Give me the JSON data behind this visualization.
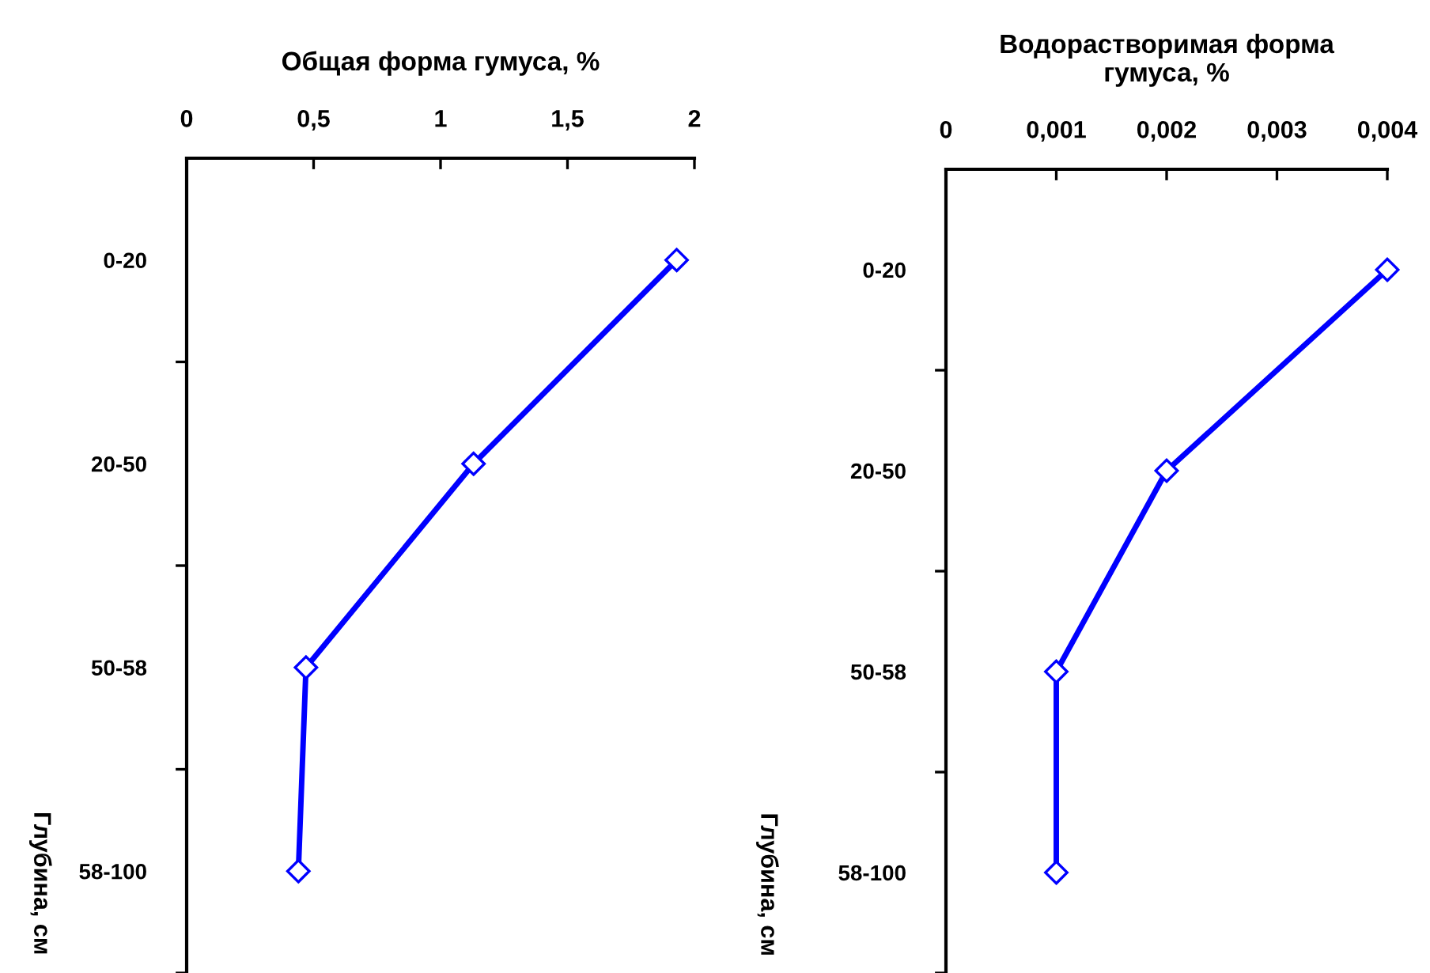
{
  "chart_data": [
    {
      "type": "line",
      "orientation": "horizontal",
      "title": "Общая форма гумуса, %",
      "ylabel": "Глубина, см",
      "categories": [
        "0-20",
        "20-50",
        "50-58",
        "58-100"
      ],
      "values": [
        1.93,
        1.13,
        0.47,
        0.44
      ],
      "color": "#0000ff",
      "marker": "diamond",
      "xlim": [
        0,
        2
      ],
      "xticks": [
        0,
        {
          "value": 0.5,
          "label": "0,5"
        },
        1,
        {
          "value": 1.5,
          "label": "1,5"
        },
        2
      ]
    },
    {
      "type": "line",
      "orientation": "horizontal",
      "title": "Водорастворимая форма\nгумуса, %",
      "ylabel": "Глубина, см",
      "categories": [
        "0-20",
        "20-50",
        "50-58",
        "58-100"
      ],
      "values": [
        0.004,
        0.002,
        0.001,
        0.001
      ],
      "color": "#0000ff",
      "marker": "diamond",
      "xlim": [
        0,
        0.004
      ],
      "xticks": [
        0,
        {
          "value": 0.001,
          "label": "0,001"
        },
        {
          "value": 0.002,
          "label": "0,002"
        },
        {
          "value": 0.003,
          "label": "0,003"
        },
        {
          "value": 0.004,
          "label": "0,004"
        }
      ]
    }
  ]
}
